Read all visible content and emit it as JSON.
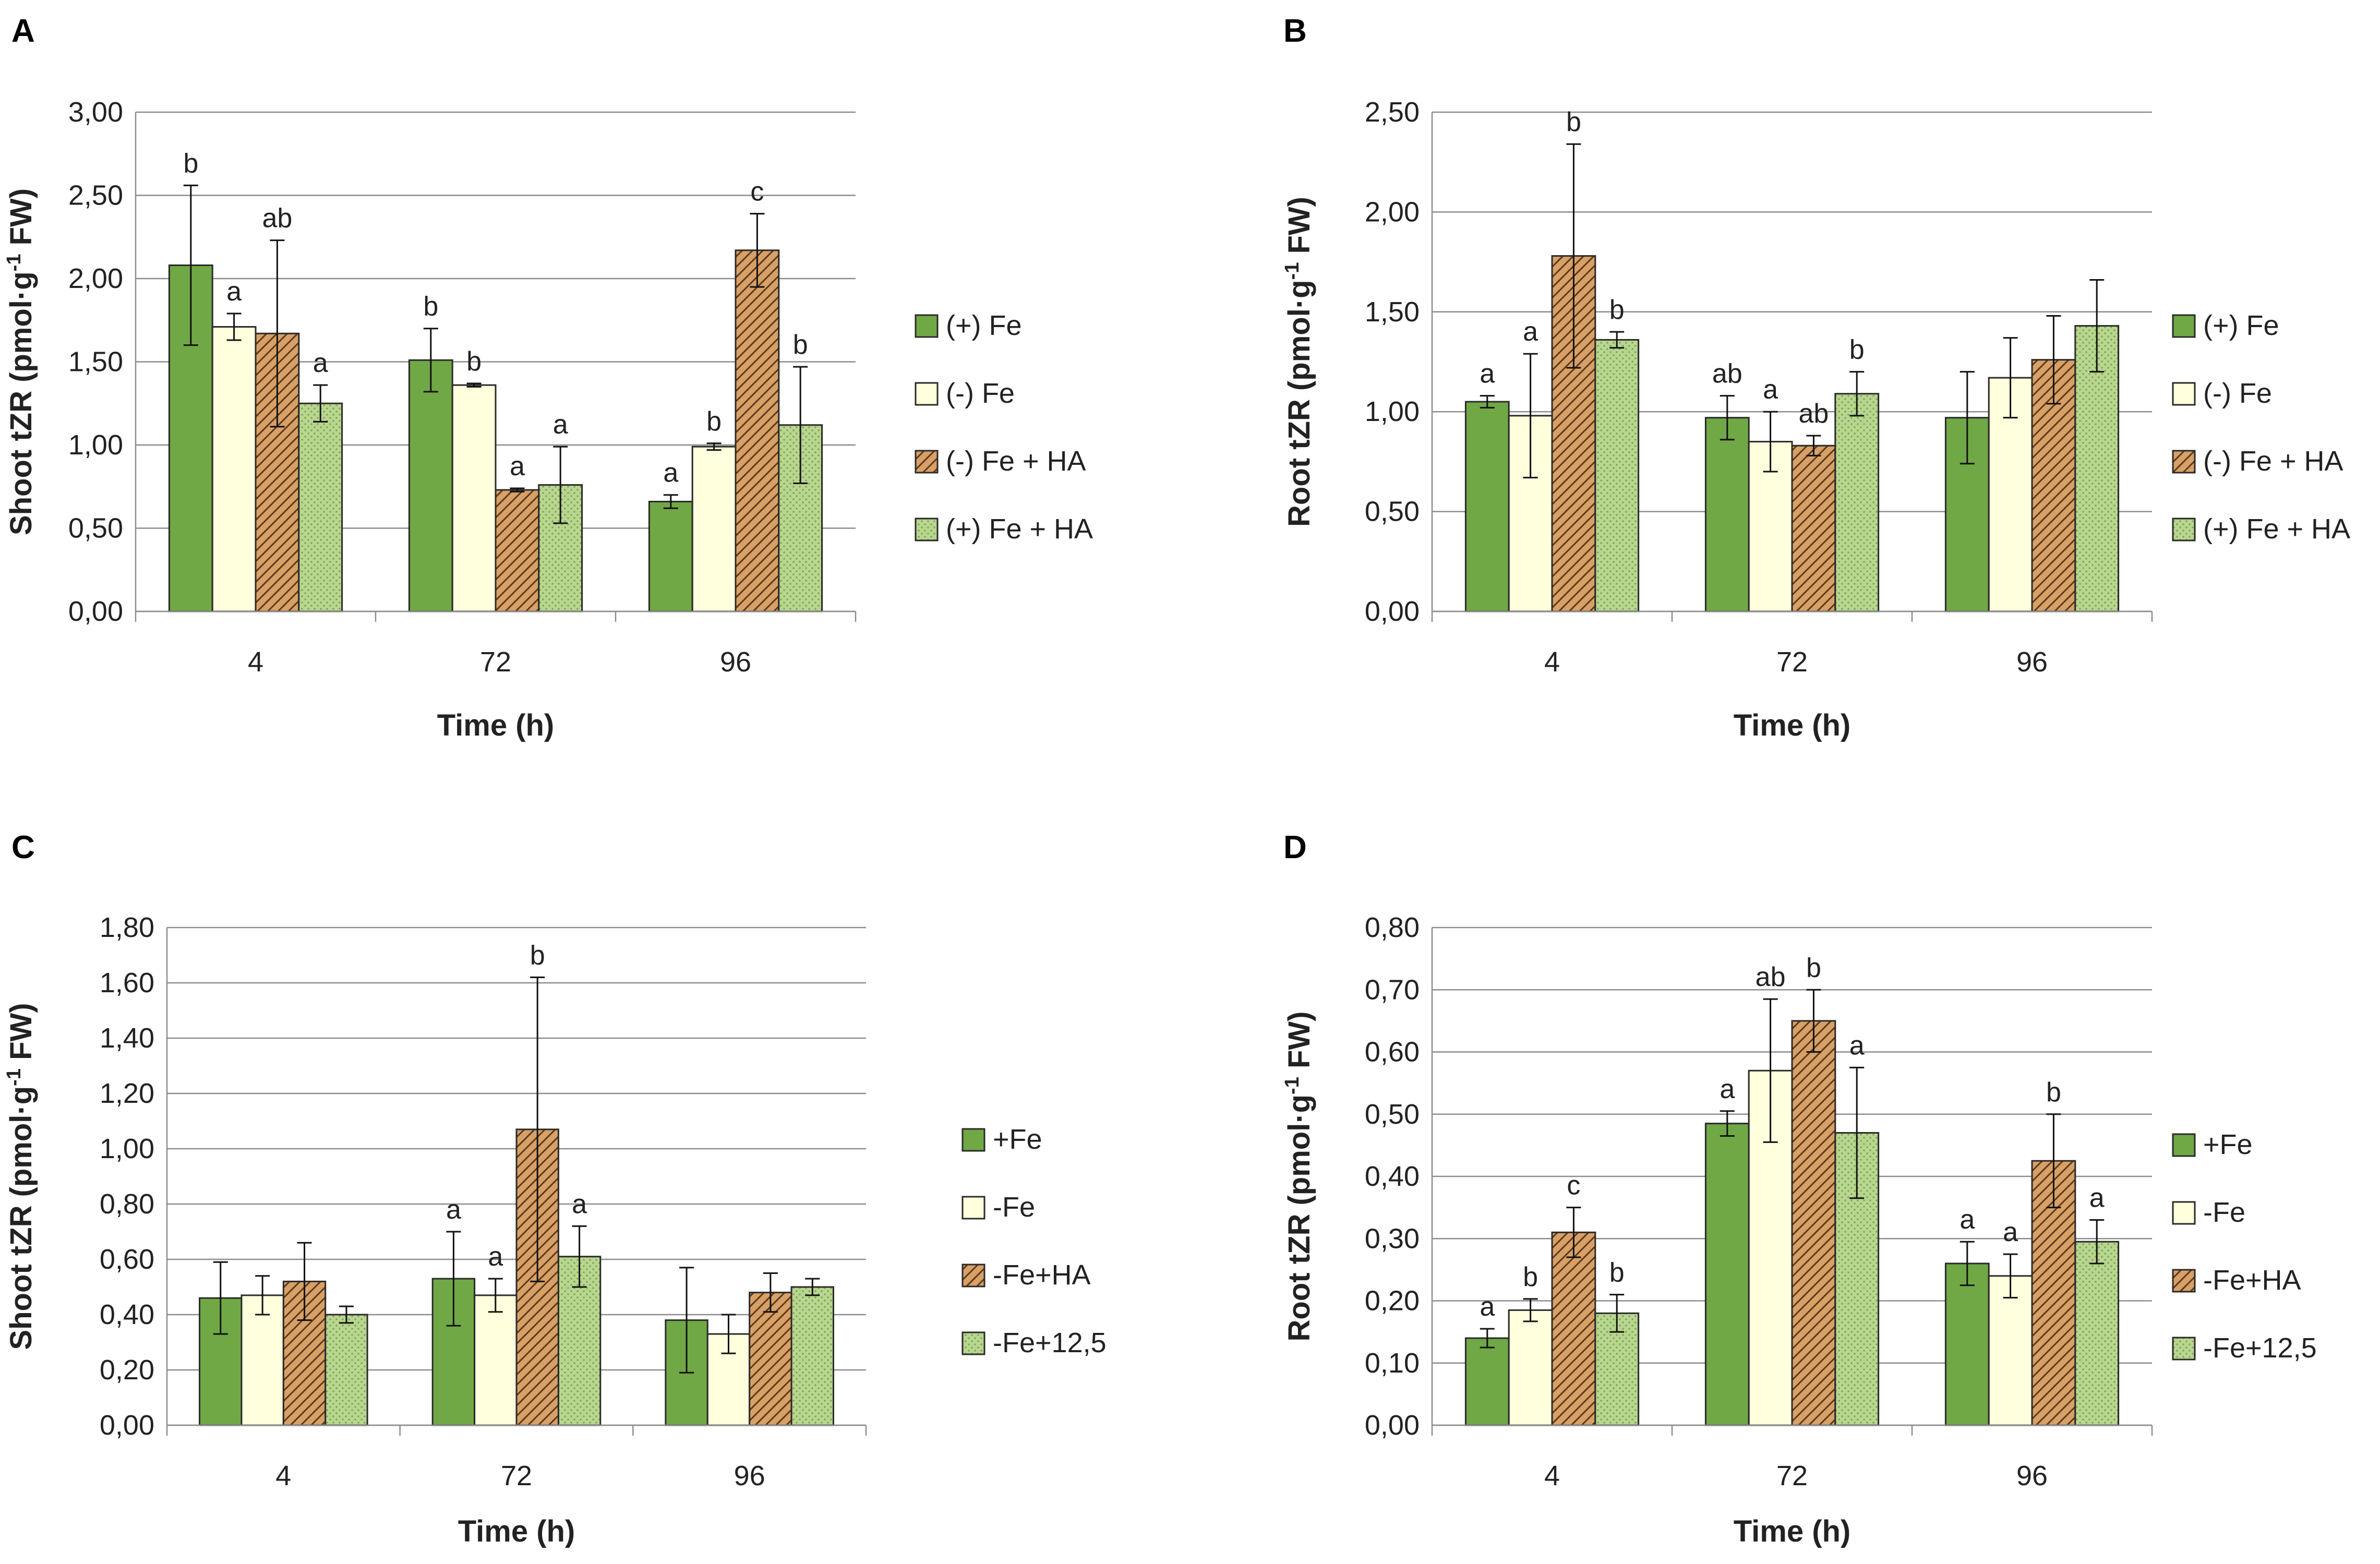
{
  "figure": {
    "colors": {
      "fe_plus": "#70a845",
      "fe_minus": "#ffffdd",
      "hatch_bg": "#d8a066",
      "hatch_line": "#5a3a1c",
      "dot_bg": "#b9d68f",
      "dot_fg": "#7ea35a",
      "grid": "#8c8c8c",
      "bar_stroke": "#2a2a2a"
    }
  },
  "chart_data": [
    {
      "panel": "A",
      "type": "bar",
      "title": "",
      "xlabel": "Time (h)",
      "ylabel_main": "Shoot tZR (pmol·g",
      "ylabel_sup": "-1",
      "ylabel_end": " FW)",
      "ylim": [
        0,
        3
      ],
      "y_step": 0.5,
      "yticks": [
        "0,00",
        "0,50",
        "1,00",
        "1,50",
        "2,00",
        "2,50",
        "3,00"
      ],
      "categories": [
        "4",
        "72",
        "96"
      ],
      "legend_position": "right",
      "series": [
        {
          "name": "(+) Fe",
          "style": "green",
          "values": [
            2.08,
            1.51,
            0.66
          ],
          "errors": [
            0.48,
            0.19,
            0.04
          ],
          "letters": [
            "b",
            "b",
            "a"
          ]
        },
        {
          "name": "(-) Fe",
          "style": "cream",
          "values": [
            1.71,
            1.36,
            0.99
          ],
          "errors": [
            0.08,
            0.01,
            0.02
          ],
          "letters": [
            "a",
            "b",
            "b"
          ]
        },
        {
          "name": "(-) Fe + HA",
          "style": "hatch",
          "values": [
            1.67,
            0.73,
            2.17
          ],
          "errors": [
            0.56,
            0.01,
            0.22
          ],
          "letters": [
            "ab",
            "a",
            "c"
          ]
        },
        {
          "name": "(+) Fe + HA",
          "style": "dots",
          "values": [
            1.25,
            0.76,
            1.12
          ],
          "errors": [
            0.11,
            0.23,
            0.35
          ],
          "letters": [
            "a",
            "a",
            "b"
          ]
        }
      ]
    },
    {
      "panel": "B",
      "type": "bar",
      "title": "",
      "xlabel": "Time (h)",
      "ylabel_main": "Root tZR (pmol·g",
      "ylabel_sup": "-1",
      "ylabel_end": " FW)",
      "ylim": [
        0,
        2.5
      ],
      "y_step": 0.5,
      "yticks": [
        "0,00",
        "0,50",
        "1,00",
        "1,50",
        "2,00",
        "2,50"
      ],
      "categories": [
        "4",
        "72",
        "96"
      ],
      "legend_position": "right",
      "series": [
        {
          "name": "(+) Fe",
          "style": "green",
          "values": [
            1.05,
            0.97,
            0.97
          ],
          "errors": [
            0.03,
            0.11,
            0.23
          ],
          "letters": [
            "a",
            "ab",
            ""
          ]
        },
        {
          "name": "(-) Fe",
          "style": "cream",
          "values": [
            0.98,
            0.85,
            1.17
          ],
          "errors": [
            0.31,
            0.15,
            0.2
          ],
          "letters": [
            "a",
            "a",
            ""
          ]
        },
        {
          "name": "(-) Fe + HA",
          "style": "hatch",
          "values": [
            1.78,
            0.83,
            1.26
          ],
          "errors": [
            0.56,
            0.05,
            0.22
          ],
          "letters": [
            "b",
            "ab",
            ""
          ]
        },
        {
          "name": "(+) Fe + HA",
          "style": "dots",
          "values": [
            1.36,
            1.09,
            1.43
          ],
          "errors": [
            0.04,
            0.11,
            0.23
          ],
          "letters": [
            "b",
            "b",
            ""
          ]
        }
      ]
    },
    {
      "panel": "C",
      "type": "bar",
      "title": "",
      "xlabel": "Time (h)",
      "ylabel_main": "Shoot tZR (pmol·g",
      "ylabel_sup": "-1",
      "ylabel_end": " FW)",
      "ylim": [
        0,
        1.8
      ],
      "y_step": 0.2,
      "yticks": [
        "0,00",
        "0,20",
        "0,40",
        "0,60",
        "0,80",
        "1,00",
        "1,20",
        "1,40",
        "1,60",
        "1,80"
      ],
      "categories": [
        "4",
        "72",
        "96"
      ],
      "legend_position": "right",
      "series": [
        {
          "name": "+Fe",
          "style": "green",
          "values": [
            0.46,
            0.53,
            0.38
          ],
          "errors": [
            0.13,
            0.17,
            0.19
          ],
          "letters": [
            "",
            "a",
            ""
          ]
        },
        {
          "name": "-Fe",
          "style": "cream",
          "values": [
            0.47,
            0.47,
            0.33
          ],
          "errors": [
            0.07,
            0.06,
            0.07
          ],
          "letters": [
            "",
            "a",
            ""
          ]
        },
        {
          "name": "-Fe+HA",
          "style": "hatch",
          "values": [
            0.52,
            1.07,
            0.48
          ],
          "errors": [
            0.14,
            0.55,
            0.07
          ],
          "letters": [
            "",
            "b",
            ""
          ]
        },
        {
          "name": "-Fe+12,5",
          "style": "dots",
          "values": [
            0.4,
            0.61,
            0.5
          ],
          "errors": [
            0.03,
            0.11,
            0.03
          ],
          "letters": [
            "",
            "a",
            ""
          ]
        }
      ]
    },
    {
      "panel": "D",
      "type": "bar",
      "title": "",
      "xlabel": "Time (h)",
      "ylabel_main": "Root tZR (pmol·g",
      "ylabel_sup": "-1",
      "ylabel_end": " FW)",
      "ylim": [
        0,
        0.8
      ],
      "y_step": 0.1,
      "yticks": [
        "0,00",
        "0,10",
        "0,20",
        "0,30",
        "0,40",
        "0,50",
        "0,60",
        "0,70",
        "0,80"
      ],
      "categories": [
        "4",
        "72",
        "96"
      ],
      "legend_position": "right",
      "series": [
        {
          "name": "+Fe",
          "style": "green",
          "values": [
            0.14,
            0.485,
            0.26
          ],
          "errors": [
            0.015,
            0.02,
            0.035
          ],
          "letters": [
            "a",
            "a",
            "a"
          ]
        },
        {
          "name": "-Fe",
          "style": "cream",
          "values": [
            0.185,
            0.57,
            0.24
          ],
          "errors": [
            0.018,
            0.115,
            0.035
          ],
          "letters": [
            "b",
            "ab",
            "a"
          ]
        },
        {
          "name": "-Fe+HA",
          "style": "hatch",
          "values": [
            0.31,
            0.65,
            0.425
          ],
          "errors": [
            0.04,
            0.05,
            0.075
          ],
          "letters": [
            "c",
            "b",
            "b"
          ]
        },
        {
          "name": "-Fe+12,5",
          "style": "dots",
          "values": [
            0.18,
            0.47,
            0.295
          ],
          "errors": [
            0.03,
            0.105,
            0.035
          ],
          "letters": [
            "b",
            "a",
            "a"
          ]
        }
      ]
    }
  ]
}
